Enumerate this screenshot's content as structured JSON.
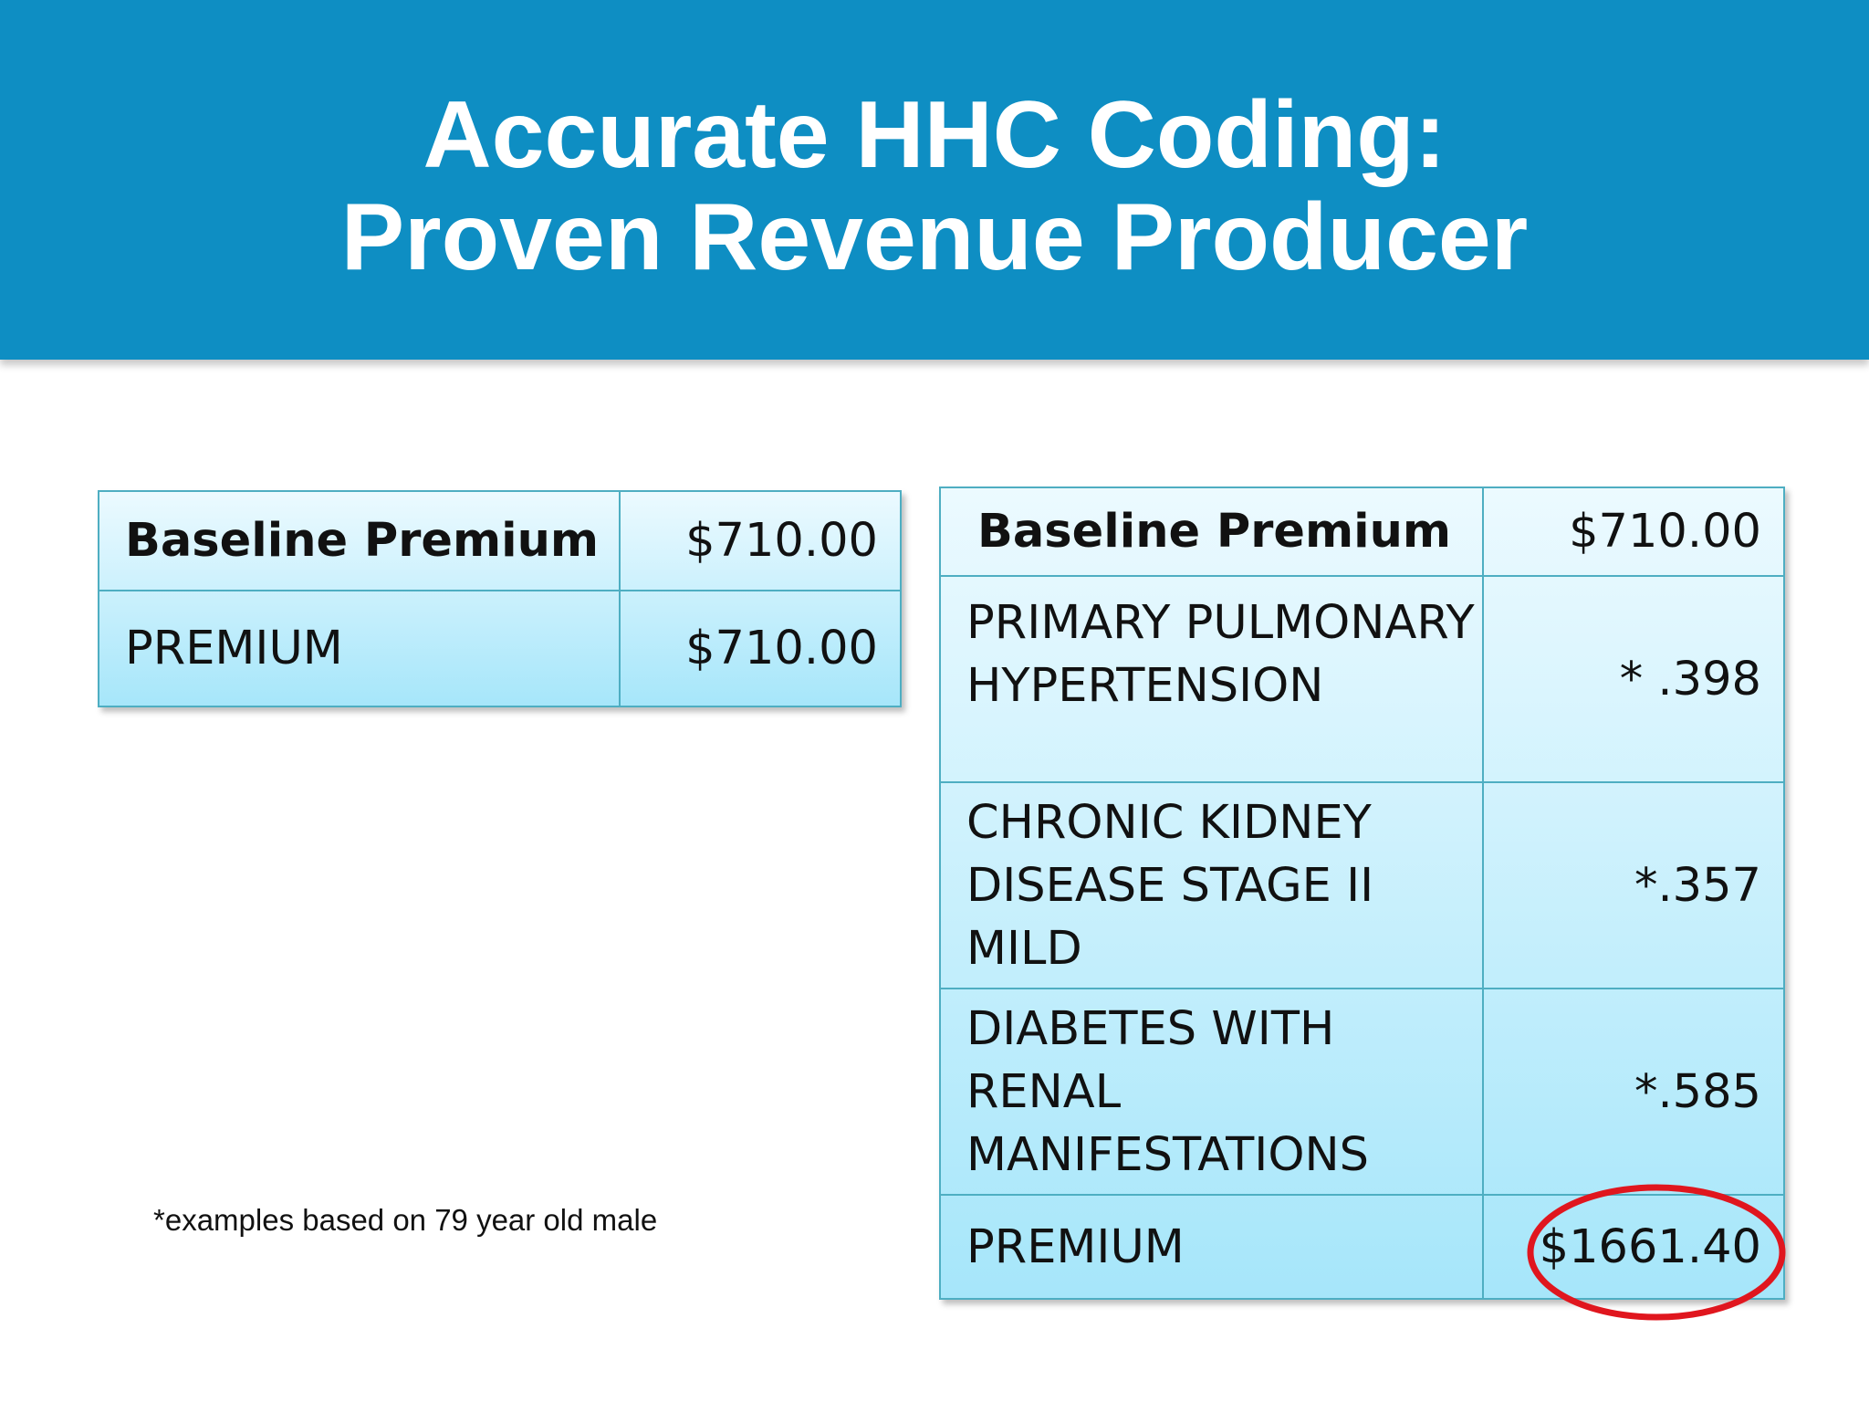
{
  "slide": {
    "title_line1": "Accurate HHC Coding:",
    "title_line2": "Proven Revenue Producer",
    "footnote": "*examples based on 79 year old male"
  },
  "table_left": {
    "rows": [
      {
        "label": "Baseline Premium",
        "value": "$710.00"
      },
      {
        "label": "PREMIUM",
        "value": "$710.00"
      }
    ]
  },
  "table_right": {
    "rows": [
      {
        "label": "Baseline Premium",
        "value": "$710.00"
      },
      {
        "label": "PRIMARY PULMONARY HYPERTENSION",
        "value": "* .398"
      },
      {
        "label": "CHRONIC KIDNEY DISEASE STAGE II MILD",
        "value": "*.357"
      },
      {
        "label": "DIABETES WITH RENAL MANIFESTATIONS",
        "value": "*.585"
      },
      {
        "label": "PREMIUM",
        "value": "$1661.40"
      }
    ]
  },
  "colors": {
    "header_bg": "#0e8ec3",
    "table_border": "#4eaec2",
    "highlight_circle": "#e0161e"
  }
}
